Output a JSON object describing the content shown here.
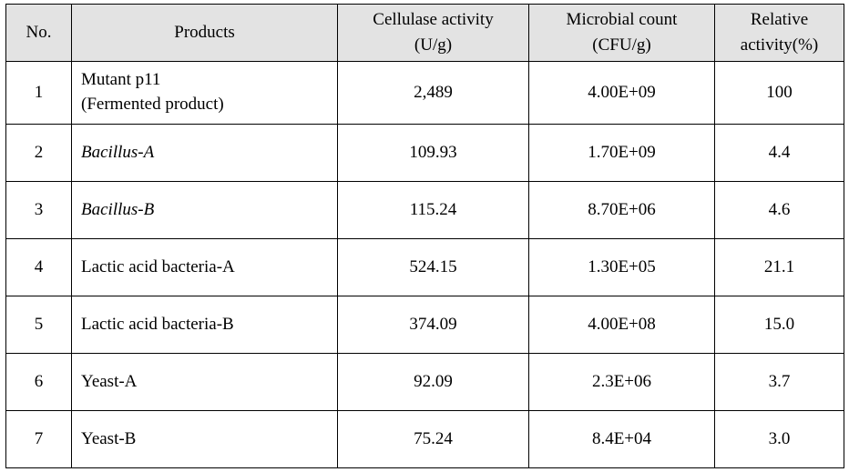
{
  "columns": {
    "no": "No.",
    "products": "Products",
    "cellulase_l1": "Cellulase activity",
    "cellulase_l2": "(U/g)",
    "microbial_l1": "Microbial count",
    "microbial_l2": "(CFU/g)",
    "relative_l1": "Relative",
    "relative_l2": "activity(%)"
  },
  "rows": [
    {
      "no": "1",
      "product_l1": "Mutant p11",
      "product_l2": "(Fermented product)",
      "italic": false,
      "cellulase": "2,489",
      "microbial": "4.00E+09",
      "relative": "100"
    },
    {
      "no": "2",
      "product_l1": "Bacillus-A",
      "product_l2": "",
      "italic": true,
      "cellulase": "109.93",
      "microbial": "1.70E+09",
      "relative": "4.4"
    },
    {
      "no": "3",
      "product_l1": "Bacillus-B",
      "product_l2": "",
      "italic": true,
      "cellulase": "115.24",
      "microbial": "8.70E+06",
      "relative": "4.6"
    },
    {
      "no": "4",
      "product_l1": "Lactic acid bacteria-A",
      "product_l2": "",
      "italic": false,
      "cellulase": "524.15",
      "microbial": "1.30E+05",
      "relative": "21.1"
    },
    {
      "no": "5",
      "product_l1": "Lactic acid bacteria-B",
      "product_l2": "",
      "italic": false,
      "cellulase": "374.09",
      "microbial": "4.00E+08",
      "relative": "15.0"
    },
    {
      "no": "6",
      "product_l1": "Yeast-A",
      "product_l2": "",
      "italic": false,
      "cellulase": "92.09",
      "microbial": "2.3E+06",
      "relative": "3.7"
    },
    {
      "no": "7",
      "product_l1": "Yeast-B",
      "product_l2": "",
      "italic": false,
      "cellulase": "75.24",
      "microbial": "8.4E+04",
      "relative": "3.0"
    }
  ]
}
